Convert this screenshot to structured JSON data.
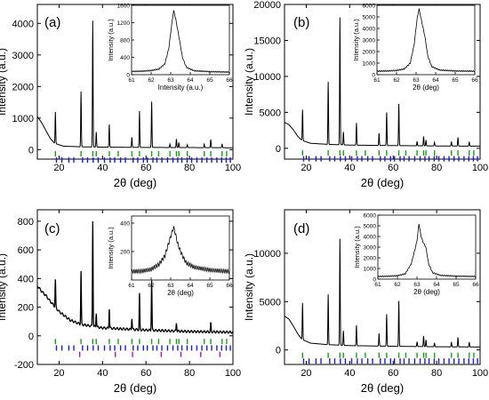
{
  "chart_data": [
    {
      "panel": "(a)",
      "type": "line",
      "xlabel": "2θ (deg)",
      "ylabel": "Intensity (a.u.)",
      "xlim": [
        10,
        100
      ],
      "ylim": [
        -300,
        4600
      ],
      "xticks": [
        "20",
        "40",
        "60",
        "80",
        "100"
      ],
      "yticks": [
        "0",
        "1000",
        "2000",
        "3000",
        "4000"
      ],
      "background": [
        [
          10,
          1050
        ],
        [
          12,
          850
        ],
        [
          14,
          600
        ],
        [
          16,
          350
        ],
        [
          18,
          200
        ],
        [
          22,
          110
        ],
        [
          30,
          90
        ],
        [
          40,
          80
        ],
        [
          60,
          70
        ],
        [
          80,
          65
        ],
        [
          100,
          60
        ]
      ],
      "peaks": [
        [
          18.3,
          1000
        ],
        [
          30.1,
          1750
        ],
        [
          35.5,
          4000
        ],
        [
          37.1,
          480
        ],
        [
          43.1,
          720
        ],
        [
          53.5,
          320
        ],
        [
          57.0,
          1150
        ],
        [
          62.6,
          1450
        ],
        [
          71.0,
          110
        ],
        [
          74.0,
          270
        ],
        [
          75.1,
          160
        ],
        [
          79.0,
          90
        ],
        [
          86.8,
          110
        ],
        [
          89.8,
          260
        ],
        [
          95.0,
          120
        ]
      ],
      "tick_rows": [
        {
          "color": "#1a9e1a",
          "y": -130,
          "x": [
            18.3,
            30.1,
            35.5,
            37.1,
            43.1,
            47.2,
            53.5,
            57.0,
            62.6,
            65.8,
            71.0,
            74.0,
            75.1,
            79.0,
            86.8,
            89.8,
            95.0,
            97.1
          ]
        },
        {
          "color": "#1a1adb",
          "y": -330,
          "x": [
            18.8,
            21.3,
            24.5,
            26.8,
            30.8,
            33.1,
            35.7,
            38.0,
            40.9,
            43.5,
            45.6,
            48.3,
            50.5,
            54.1,
            56.2,
            58.8,
            60.6,
            63.2,
            65.0,
            67.3,
            69.9,
            72.4,
            74.6,
            76.5,
            78.9,
            81.0,
            83.4,
            85.7,
            88.0,
            90.2,
            92.6,
            94.8,
            96.9,
            98.8
          ]
        }
      ],
      "inset": {
        "xlabel": "Intensity (a.u.)",
        "ylabel": "Intensity (a.u.)",
        "xlim": [
          61,
          66
        ],
        "ylim": [
          0,
          1600
        ],
        "xticks": [
          "61",
          "62",
          "63",
          "64",
          "65",
          "66"
        ],
        "yticks": [
          "0",
          "400",
          "800",
          "1200",
          "1600"
        ],
        "profile": [
          [
            61.0,
            75
          ],
          [
            61.5,
            80
          ],
          [
            62.0,
            95
          ],
          [
            62.4,
            130
          ],
          [
            62.7,
            250
          ],
          [
            62.9,
            600
          ],
          [
            63.05,
            1150
          ],
          [
            63.15,
            1480
          ],
          [
            63.25,
            1300
          ],
          [
            63.35,
            1050
          ],
          [
            63.45,
            800
          ],
          [
            63.6,
            400
          ],
          [
            63.8,
            170
          ],
          [
            64.2,
            90
          ],
          [
            65.0,
            70
          ],
          [
            66.0,
            60
          ]
        ]
      }
    },
    {
      "panel": "(b)",
      "type": "line",
      "xlabel": "2θ (deg)",
      "ylabel": "Intensity (a.u.)",
      "xlim": [
        10,
        100
      ],
      "ylim": [
        -1500,
        20000
      ],
      "xticks": [
        "20",
        "40",
        "60",
        "80",
        "100"
      ],
      "yticks": [
        "0",
        "5000",
        "10000",
        "15000",
        "20000"
      ],
      "background": [
        [
          10,
          3600
        ],
        [
          12,
          3300
        ],
        [
          14,
          2600
        ],
        [
          16,
          1700
        ],
        [
          18,
          1100
        ],
        [
          22,
          700
        ],
        [
          30,
          550
        ],
        [
          40,
          450
        ],
        [
          60,
          380
        ],
        [
          80,
          330
        ],
        [
          100,
          300
        ]
      ],
      "peaks": [
        [
          18.3,
          4300
        ],
        [
          30.1,
          8700
        ],
        [
          35.5,
          17700
        ],
        [
          37.1,
          1800
        ],
        [
          43.1,
          3100
        ],
        [
          53.5,
          1700
        ],
        [
          57.0,
          4600
        ],
        [
          62.6,
          5800
        ],
        [
          71.0,
          600
        ],
        [
          74.0,
          1300
        ],
        [
          75.1,
          800
        ],
        [
          79.0,
          500
        ],
        [
          86.8,
          600
        ],
        [
          89.8,
          1200
        ],
        [
          95.0,
          600
        ]
      ],
      "tick_rows": [
        {
          "color": "#1a9e1a",
          "y": -650,
          "x": [
            18.3,
            30.1,
            35.5,
            37.1,
            43.1,
            47.2,
            53.5,
            57.0,
            62.6,
            65.8,
            71.0,
            74.0,
            75.1,
            79.0,
            86.8,
            89.8,
            95.0,
            97.1
          ]
        },
        {
          "color": "#1a1adb",
          "y": -1450,
          "x": [
            18.8,
            21.3,
            24.5,
            26.8,
            30.8,
            33.1,
            35.7,
            38.0,
            40.9,
            43.5,
            45.6,
            48.3,
            50.5,
            54.1,
            56.2,
            58.8,
            60.6,
            63.2,
            65.0,
            67.3,
            69.9,
            72.4,
            74.6,
            76.5,
            78.9,
            81.0,
            83.4,
            85.7,
            88.0,
            90.2,
            92.6,
            94.8,
            96.9,
            98.8
          ]
        }
      ],
      "inset": {
        "xlabel": "2θ (deg)",
        "ylabel": "Intensity (a.u.)",
        "xlim": [
          61,
          66
        ],
        "ylim": [
          0,
          6000
        ],
        "xticks": [
          "61",
          "62",
          "63",
          "64",
          "65",
          "66"
        ],
        "yticks": [
          "0",
          "1000",
          "2000",
          "3000",
          "4000",
          "5000",
          "6000"
        ],
        "profile": [
          [
            61.0,
            300
          ],
          [
            61.5,
            320
          ],
          [
            62.0,
            360
          ],
          [
            62.4,
            500
          ],
          [
            62.7,
            1000
          ],
          [
            62.9,
            2600
          ],
          [
            63.05,
            4800
          ],
          [
            63.15,
            5700
          ],
          [
            63.25,
            4900
          ],
          [
            63.35,
            4100
          ],
          [
            63.45,
            3300
          ],
          [
            63.6,
            1600
          ],
          [
            63.8,
            700
          ],
          [
            64.2,
            400
          ],
          [
            65.0,
            320
          ],
          [
            66.0,
            300
          ]
        ]
      }
    },
    {
      "panel": "(c)",
      "type": "line",
      "xlabel": "2θ (deg)",
      "ylabel": "Intensity (a.u.)",
      "xlim": [
        10,
        100
      ],
      "ylim": [
        -200,
        880
      ],
      "xticks": [
        "20",
        "40",
        "60",
        "80",
        "100"
      ],
      "yticks": [
        "-200",
        "0",
        "200",
        "400",
        "600",
        "800"
      ],
      "background": [
        [
          10,
          350
        ],
        [
          12,
          310
        ],
        [
          14,
          280
        ],
        [
          16,
          240
        ],
        [
          20,
          170
        ],
        [
          25,
          110
        ],
        [
          30,
          80
        ],
        [
          40,
          55
        ],
        [
          60,
          40
        ],
        [
          80,
          30
        ],
        [
          100,
          25
        ]
      ],
      "peaks": [
        [
          18.3,
          190
        ],
        [
          30.1,
          370
        ],
        [
          35.5,
          740
        ],
        [
          37.1,
          100
        ],
        [
          43.1,
          140
        ],
        [
          53.5,
          80
        ],
        [
          57.0,
          250
        ],
        [
          62.6,
          350
        ],
        [
          74.0,
          60
        ],
        [
          89.8,
          60
        ]
      ],
      "tick_rows": [
        {
          "color": "#1a9e1a",
          "y": -40,
          "x": [
            18.3,
            30.1,
            35.5,
            37.1,
            43.1,
            47.2,
            53.5,
            57.0,
            62.6,
            65.8,
            71.0,
            74.0,
            75.1,
            79.0,
            86.8,
            89.8,
            95.0,
            97.1
          ]
        },
        {
          "color": "#1a1adb",
          "y": -85,
          "x": [
            18.8,
            21.3,
            24.5,
            26.8,
            30.8,
            33.1,
            35.7,
            38.0,
            40.9,
            43.5,
            45.6,
            48.3,
            50.5,
            54.1,
            56.2,
            58.8,
            60.6,
            63.2,
            65.0,
            67.3,
            69.9,
            72.4,
            74.6,
            76.5,
            78.9,
            81.0,
            83.4,
            85.7,
            88.0,
            90.2,
            92.6,
            94.8,
            96.9,
            98.8
          ]
        },
        {
          "color": "#a21ab5",
          "y": -130,
          "x": [
            29.5,
            45.9,
            53.8,
            67.0,
            76.1,
            85.2,
            94.0
          ]
        }
      ],
      "inset": {
        "xlabel": "2θ (deg)",
        "ylabel": "Intensity (a.u.)",
        "xlim": [
          61,
          66
        ],
        "ylim": [
          0,
          450
        ],
        "xticks": [
          "61",
          "62",
          "63",
          "64",
          "65",
          "66"
        ],
        "yticks": [
          "200",
          "400"
        ],
        "profile": [
          [
            61.0,
            60
          ],
          [
            61.5,
            62
          ],
          [
            62.0,
            75
          ],
          [
            62.4,
            110
          ],
          [
            62.7,
            170
          ],
          [
            62.9,
            260
          ],
          [
            63.05,
            330
          ],
          [
            63.15,
            370
          ],
          [
            63.25,
            320
          ],
          [
            63.35,
            260
          ],
          [
            63.45,
            220
          ],
          [
            63.6,
            170
          ],
          [
            63.8,
            120
          ],
          [
            64.2,
            90
          ],
          [
            65.0,
            70
          ],
          [
            66.0,
            60
          ]
        ]
      }
    },
    {
      "panel": "(d)",
      "type": "line",
      "xlabel": "2θ (deg)",
      "ylabel": "Intensity (a.u.)",
      "xlim": [
        10,
        100
      ],
      "ylim": [
        -1500,
        14500
      ],
      "xticks": [
        "20",
        "40",
        "60",
        "80",
        "100"
      ],
      "yticks": [
        "0",
        "5000",
        "10000"
      ],
      "background": [
        [
          10,
          3500
        ],
        [
          12,
          3200
        ],
        [
          14,
          2500
        ],
        [
          16,
          1700
        ],
        [
          18,
          1100
        ],
        [
          22,
          700
        ],
        [
          30,
          550
        ],
        [
          40,
          450
        ],
        [
          60,
          380
        ],
        [
          80,
          330
        ],
        [
          100,
          300
        ]
      ],
      "peaks": [
        [
          18.3,
          3800
        ],
        [
          30.1,
          5200
        ],
        [
          35.5,
          11000
        ],
        [
          37.1,
          1500
        ],
        [
          43.1,
          2100
        ],
        [
          53.5,
          1300
        ],
        [
          57.0,
          3300
        ],
        [
          62.6,
          4700
        ],
        [
          71.0,
          500
        ],
        [
          74.0,
          1100
        ],
        [
          75.1,
          700
        ],
        [
          79.0,
          400
        ],
        [
          86.8,
          500
        ],
        [
          89.8,
          1000
        ],
        [
          95.0,
          500
        ]
      ],
      "tick_rows": [
        {
          "color": "#1a9e1a",
          "y": -550,
          "x": [
            18.3,
            30.1,
            35.5,
            37.1,
            43.1,
            47.2,
            53.5,
            57.0,
            62.6,
            65.8,
            71.0,
            74.0,
            75.1,
            79.0,
            86.8,
            89.8,
            95.0,
            97.1
          ]
        },
        {
          "color": "#1a1adb",
          "y": -1150,
          "x": [
            18.8,
            21.3,
            24.5,
            26.8,
            30.8,
            33.1,
            35.7,
            38.0,
            40.9,
            43.5,
            45.6,
            48.3,
            50.5,
            54.1,
            56.2,
            58.8,
            60.6,
            63.2,
            65.0,
            67.3,
            69.9,
            72.4,
            74.6,
            76.5,
            78.9,
            81.0,
            83.4,
            85.7,
            88.0,
            90.2,
            92.6,
            94.8,
            96.9,
            98.8
          ]
        }
      ],
      "inset": {
        "xlabel": "2θ (deg)",
        "ylabel": "Intensity (a.u.)",
        "xlim": [
          61,
          66
        ],
        "ylim": [
          0,
          6000
        ],
        "xticks": [
          "61",
          "62",
          "63",
          "64",
          "65",
          "66"
        ],
        "yticks": [
          "0",
          "1000",
          "2000",
          "3000",
          "4000",
          "5000",
          "6000"
        ],
        "profile": [
          [
            61.0,
            250
          ],
          [
            61.5,
            270
          ],
          [
            62.0,
            320
          ],
          [
            62.4,
            500
          ],
          [
            62.7,
            1400
          ],
          [
            62.9,
            2800
          ],
          [
            63.0,
            3600
          ],
          [
            63.1,
            5200
          ],
          [
            63.2,
            4100
          ],
          [
            63.3,
            3500
          ],
          [
            63.45,
            3000
          ],
          [
            63.6,
            1400
          ],
          [
            63.8,
            600
          ],
          [
            64.2,
            350
          ],
          [
            65.0,
            280
          ],
          [
            66.0,
            250
          ]
        ]
      }
    }
  ]
}
